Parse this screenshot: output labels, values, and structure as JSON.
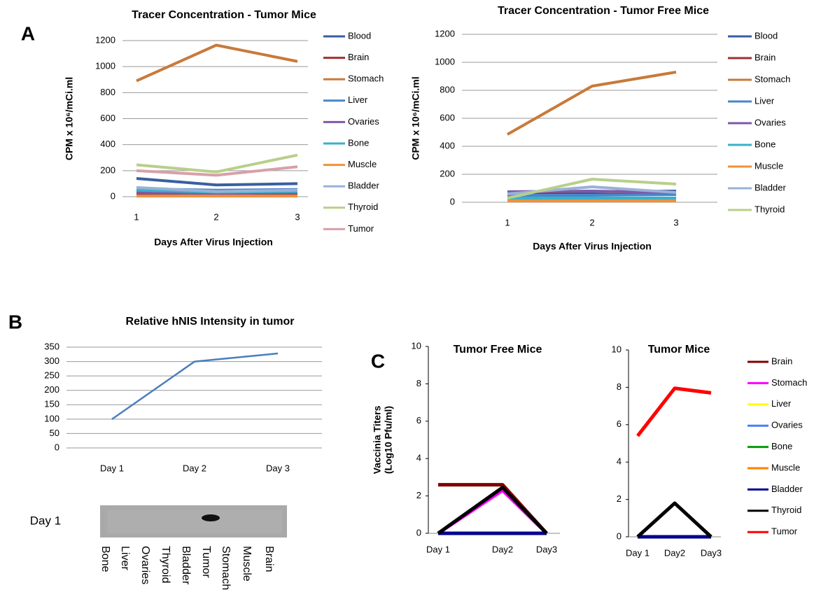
{
  "panels": [
    "A",
    "B",
    "C"
  ],
  "blot": {
    "row_label": "Day 1",
    "lanes": [
      "Bone",
      "Liver",
      "Ovaries",
      "Thyroid",
      "Bladder",
      "Tumor",
      "Stomach",
      "Muscle",
      "Brain"
    ]
  },
  "chart_data": [
    {
      "type": "line",
      "title": "Tracer Concentration - Tumor Mice",
      "x_label": "Days After Virus Injection",
      "y_label": [
        "CPM x 10⁶/mCi.ml"
      ],
      "categories": [
        "1",
        "2",
        "3"
      ],
      "ylim": [
        0,
        1200
      ],
      "yticks": [
        0,
        200,
        400,
        600,
        800,
        1000,
        1200
      ],
      "grid": true,
      "legend": "right",
      "series": [
        {
          "name": "Blood",
          "color": "#3a5fa0",
          "values": [
            140,
            90,
            100
          ]
        },
        {
          "name": "Brain",
          "color": "#a03030",
          "values": [
            20,
            15,
            15
          ]
        },
        {
          "name": "Stomach",
          "color": "#c87a3a",
          "values": [
            890,
            1165,
            1040
          ]
        },
        {
          "name": "Liver",
          "color": "#4a86c8",
          "values": [
            60,
            50,
            55
          ]
        },
        {
          "name": "Ovaries",
          "color": "#7d5aa8",
          "values": [
            30,
            25,
            30
          ]
        },
        {
          "name": "Bone",
          "color": "#3ab0c8",
          "values": [
            50,
            35,
            40
          ]
        },
        {
          "name": "Muscle",
          "color": "#f0913a",
          "values": [
            5,
            5,
            5
          ]
        },
        {
          "name": "Bladder",
          "color": "#9ab0d8",
          "values": [
            70,
            40,
            50
          ]
        },
        {
          "name": "Thyroid",
          "color": "#b8cf8a",
          "values": [
            245,
            190,
            320
          ]
        },
        {
          "name": "Tumor",
          "color": "#d8a0a8",
          "values": [
            200,
            165,
            230
          ]
        }
      ]
    },
    {
      "type": "line",
      "title": "Tracer Concentration - Tumor Free Mice",
      "x_label": "Days After Virus Injection",
      "y_label": [
        "CPM x 10⁶/mCi.ml"
      ],
      "categories": [
        "1",
        "2",
        "3"
      ],
      "ylim": [
        0,
        1200
      ],
      "yticks": [
        0,
        200,
        400,
        600,
        800,
        1000,
        1200
      ],
      "grid": true,
      "legend": "right",
      "series": [
        {
          "name": "Blood",
          "color": "#3a5fa0",
          "values": [
            70,
            75,
            80
          ]
        },
        {
          "name": "Brain",
          "color": "#a03030",
          "values": [
            60,
            55,
            60
          ]
        },
        {
          "name": "Stomach",
          "color": "#c87a3a",
          "values": [
            485,
            830,
            930
          ]
        },
        {
          "name": "Liver",
          "color": "#4a86c8",
          "values": [
            50,
            50,
            55
          ]
        },
        {
          "name": "Ovaries",
          "color": "#7d5aa8",
          "values": [
            75,
            80,
            70
          ]
        },
        {
          "name": "Bone",
          "color": "#3ab0c8",
          "values": [
            30,
            30,
            30
          ]
        },
        {
          "name": "Muscle",
          "color": "#f0913a",
          "values": [
            10,
            10,
            10
          ]
        },
        {
          "name": "Bladder",
          "color": "#9ab0d8",
          "values": [
            60,
            110,
            70
          ]
        },
        {
          "name": "Thyroid",
          "color": "#b8cf8a",
          "values": [
            30,
            165,
            130
          ]
        }
      ]
    },
    {
      "type": "line",
      "title": "Relative hNIS Intensity in tumor",
      "categories": [
        "Day 1",
        "Day 2",
        "Day 3"
      ],
      "ylim": [
        0,
        350
      ],
      "yticks": [
        0,
        50,
        100,
        150,
        200,
        250,
        300,
        350
      ],
      "grid": true,
      "legend": "none",
      "series": [
        {
          "name": "hNIS",
          "color": "#4a7ebb",
          "values": [
            100,
            300,
            328
          ]
        }
      ]
    },
    {
      "type": "line",
      "title": "Tumor Free Mice",
      "y_label": [
        "Vaccinia Titers",
        "(Log10 Pfu/ml)"
      ],
      "categories": [
        "Day 1",
        "Day2",
        "Day3"
      ],
      "ylim": [
        0,
        10
      ],
      "yticks": [
        0,
        2,
        4,
        6,
        8,
        10
      ],
      "grid": false,
      "legend": "none",
      "series": [
        {
          "name": "Brain",
          "color": "#800000",
          "values": [
            2.6,
            2.6,
            0
          ]
        },
        {
          "name": "Stomach",
          "color": "#ff00ff",
          "values": [
            0,
            2.3,
            0
          ]
        },
        {
          "name": "Liver",
          "color": "#ffff00",
          "values": [
            0,
            0,
            0
          ]
        },
        {
          "name": "Ovaries",
          "color": "#4a7aff",
          "values": [
            0,
            0,
            0
          ]
        },
        {
          "name": "Bone",
          "color": "#0a9a0a",
          "values": [
            0,
            0,
            0
          ]
        },
        {
          "name": "Muscle",
          "color": "#ff8000",
          "values": [
            0,
            0,
            0
          ]
        },
        {
          "name": "Bladder",
          "color": "#000090",
          "values": [
            0,
            0,
            0
          ]
        },
        {
          "name": "Thyroid",
          "color": "#000000",
          "values": [
            0,
            2.45,
            0
          ]
        }
      ]
    },
    {
      "type": "line",
      "title": "Tumor Mice",
      "categories": [
        "Day 1",
        "Day2",
        "Day3"
      ],
      "ylim": [
        0,
        10
      ],
      "yticks": [
        0,
        2,
        4,
        6,
        8,
        10
      ],
      "grid": false,
      "legend": "right",
      "series": [
        {
          "name": "Brain",
          "color": "#800000",
          "values": [
            0,
            0,
            0
          ]
        },
        {
          "name": "Stomach",
          "color": "#ff00ff",
          "values": [
            0,
            0,
            0
          ]
        },
        {
          "name": "Liver",
          "color": "#ffff00",
          "values": [
            0,
            0,
            0
          ]
        },
        {
          "name": "Ovaries",
          "color": "#4a7aff",
          "values": [
            0,
            0,
            0
          ]
        },
        {
          "name": "Bone",
          "color": "#0a9a0a",
          "values": [
            0,
            0,
            0
          ]
        },
        {
          "name": "Muscle",
          "color": "#ff8000",
          "values": [
            0,
            0,
            0
          ]
        },
        {
          "name": "Bladder",
          "color": "#000090",
          "values": [
            0,
            0,
            0
          ]
        },
        {
          "name": "Thyroid",
          "color": "#000000",
          "values": [
            0,
            1.8,
            0
          ]
        },
        {
          "name": "Tumor",
          "color": "#ff0000",
          "values": [
            5.4,
            7.95,
            7.7
          ]
        }
      ]
    }
  ]
}
